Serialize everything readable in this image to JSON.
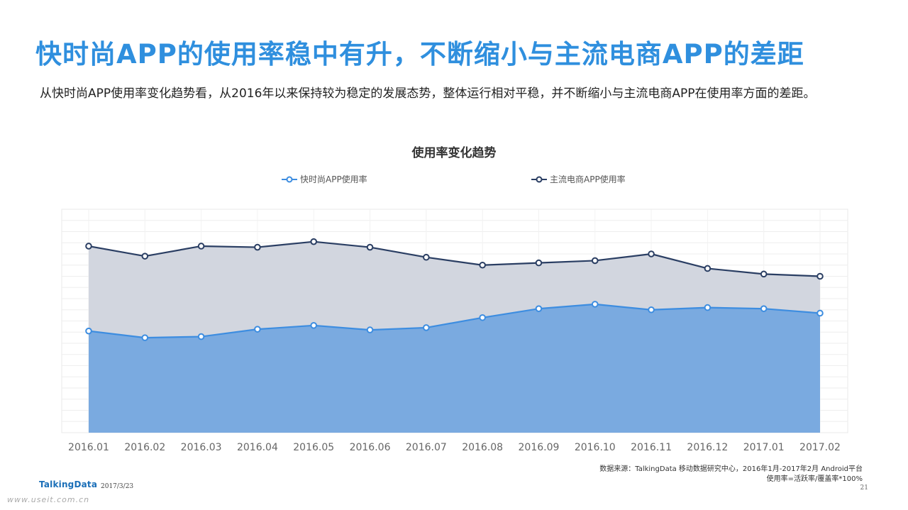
{
  "header": {
    "title": "快时尚APP的使用率稳中有升，不断缩小与主流电商APP的差距",
    "subtitle": "从快时尚APP使用率变化趋势看，从2016年以来保持较为稳定的发展态势，整体运行相对平稳，并不断缩小与主流电商APP在使用率方面的差距。"
  },
  "chart_data": {
    "type": "area",
    "title": "使用率变化趋势",
    "categories": [
      "2016.01",
      "2016.02",
      "2016.03",
      "2016.04",
      "2016.05",
      "2016.06",
      "2016.07",
      "2016.08",
      "2016.09",
      "2016.10",
      "2016.11",
      "2016.12",
      "2017.01",
      "2017.02"
    ],
    "ylim": [
      0,
      100
    ],
    "y_tick_labels_shown": false,
    "grid": true,
    "legend_position": "top",
    "series": [
      {
        "name": "快时尚APP使用率",
        "color": "#3d8de0",
        "fill_color": "#7aaae0",
        "values": [
          45.5,
          42.5,
          43.0,
          46.3,
          48.0,
          46.0,
          47.0,
          51.5,
          55.5,
          57.5,
          55.0,
          56.0,
          55.5,
          53.5
        ]
      },
      {
        "name": "主流电商APP使用率",
        "color": "#2a3e63",
        "fill_color": "#d2d6df",
        "values": [
          83.5,
          79.0,
          83.5,
          83.0,
          85.5,
          83.0,
          78.5,
          75.0,
          76.0,
          77.0,
          80.0,
          73.5,
          71.0,
          70.0
        ]
      }
    ]
  },
  "footer": {
    "source_line1": "数据来源：TalkingData 移动数据研究中心，2016年1月-2017年2月 Android平台",
    "source_line2": "使用率=活跃率/覆盖率*100%",
    "brand": "TalkingData",
    "date": "2017/3/23",
    "page_number": "21",
    "watermark": "www.useit.com.cn"
  }
}
